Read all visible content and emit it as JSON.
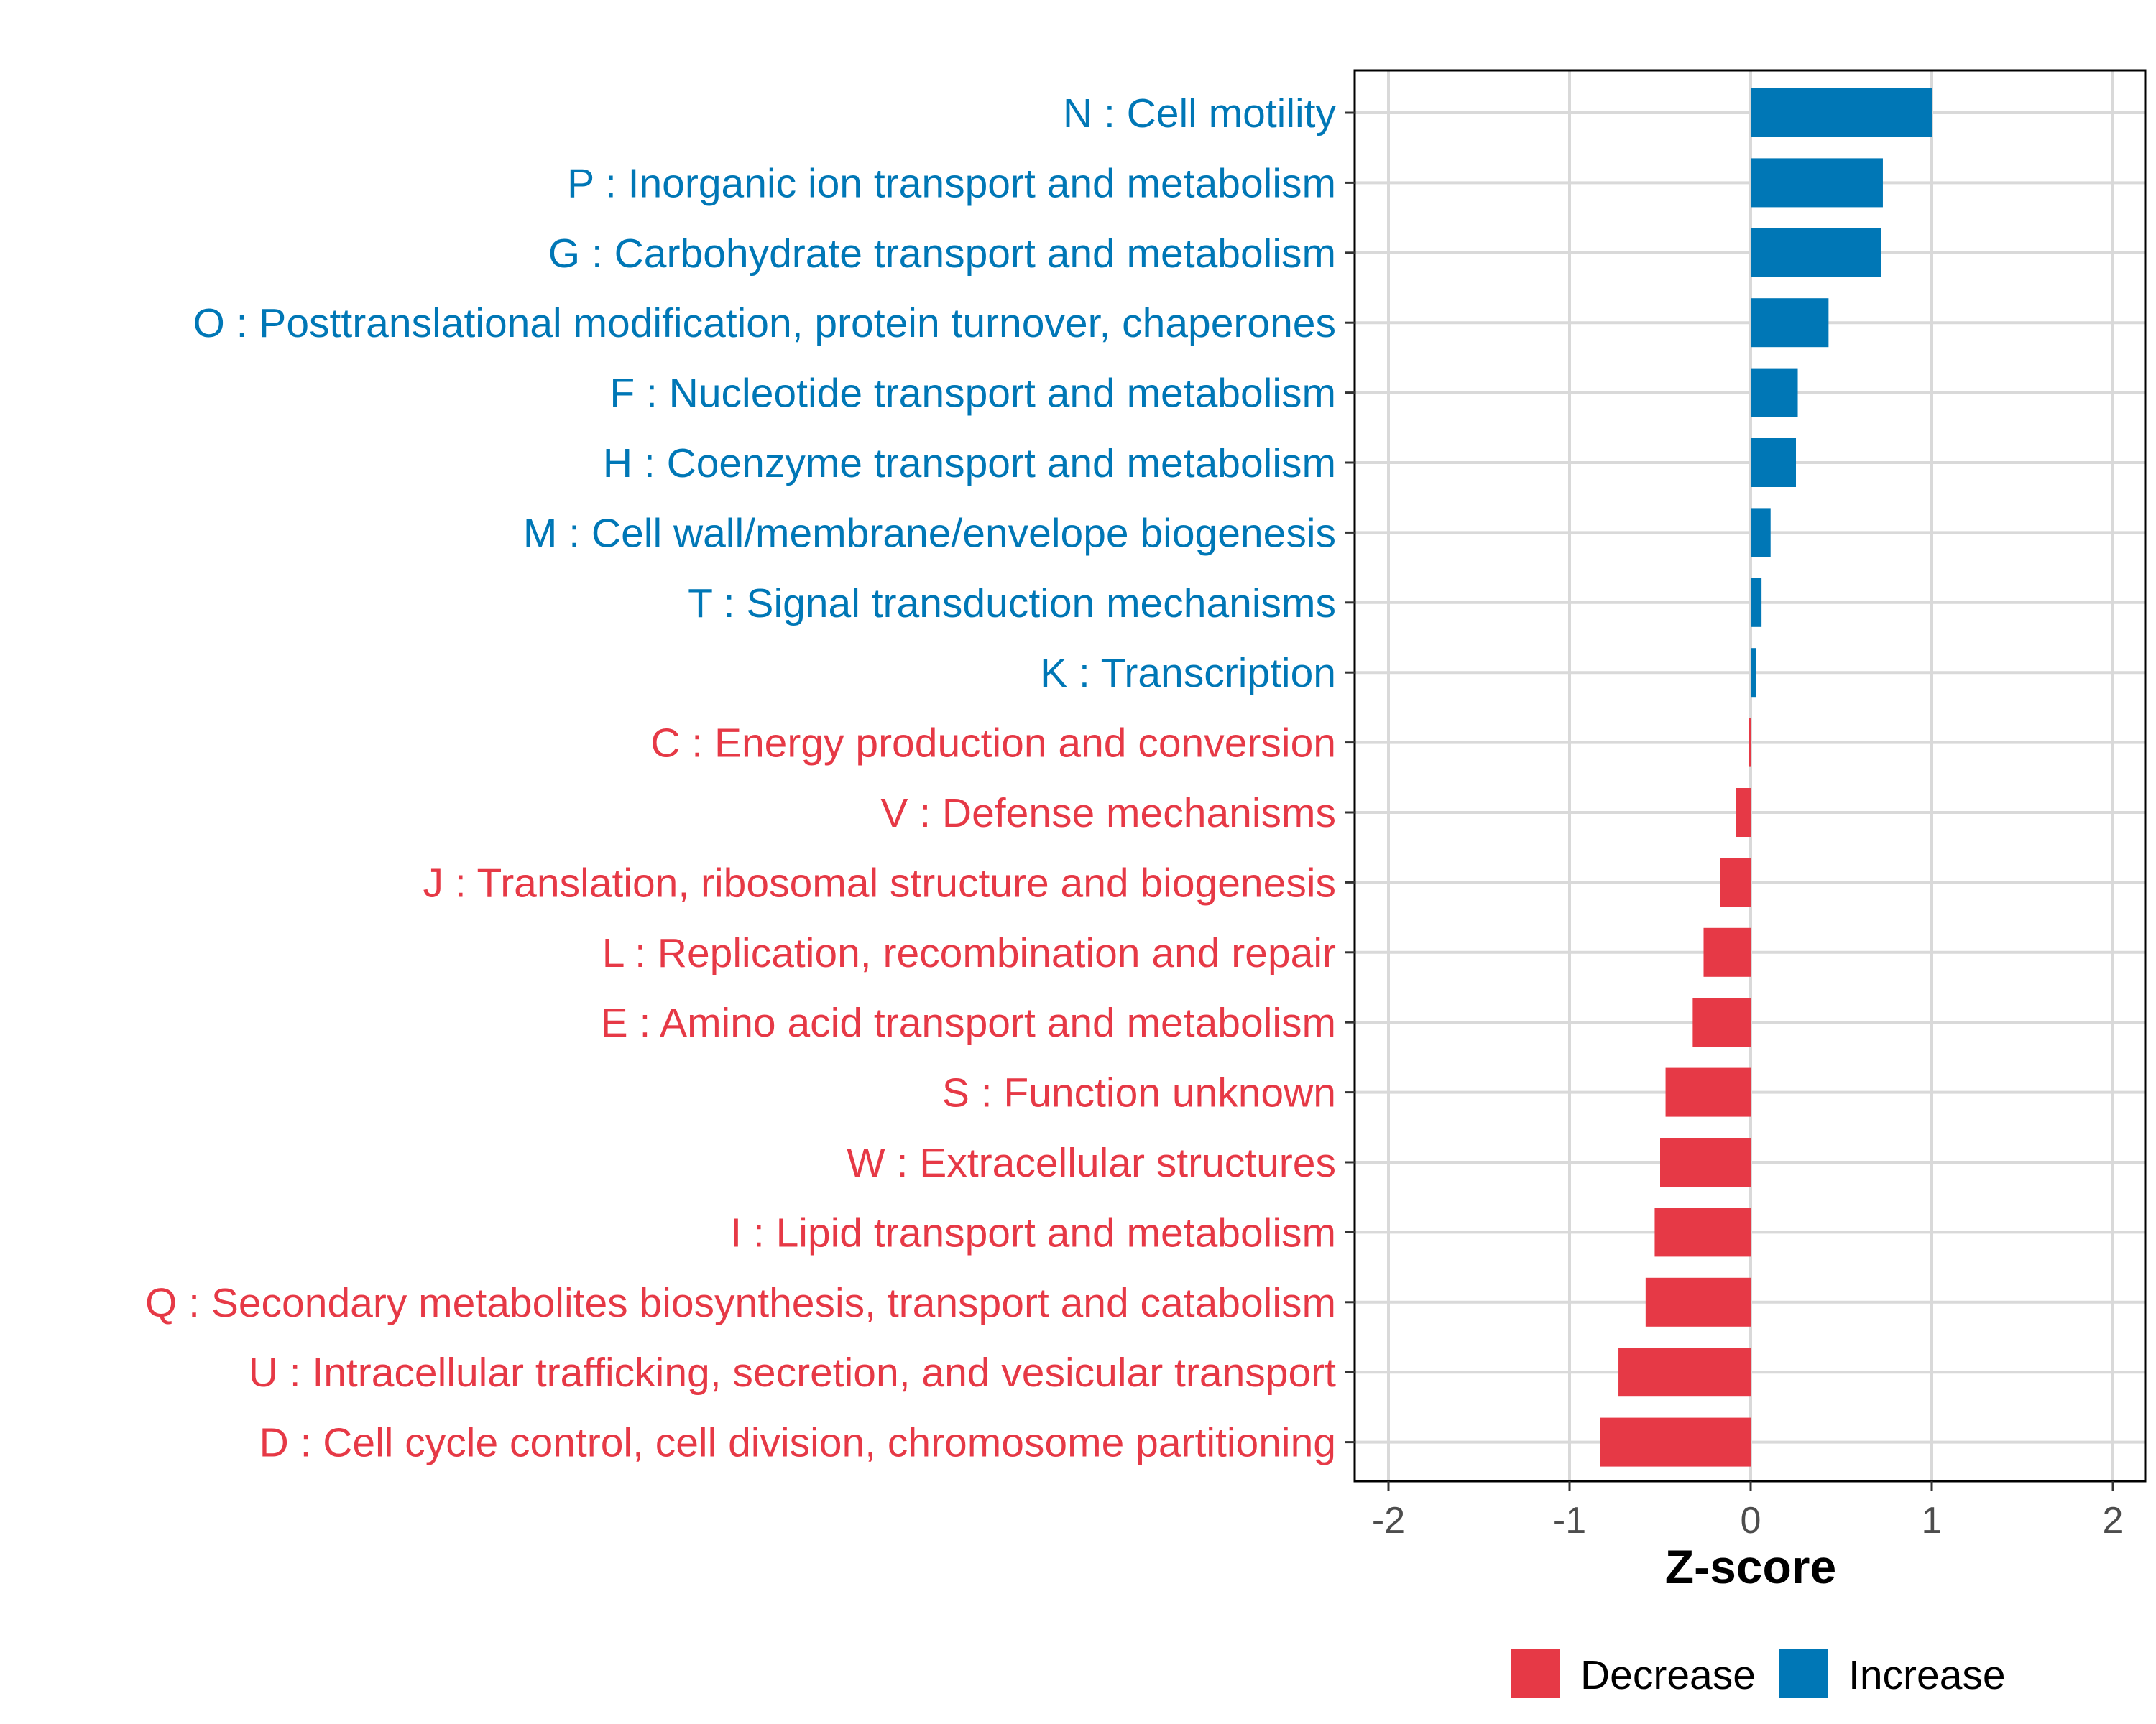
{
  "chart_data": {
    "type": "bar",
    "orientation": "horizontal",
    "title": "",
    "xlabel": "Z-score",
    "ylabel": "",
    "xlim": [
      -2.2,
      2.2
    ],
    "xticks": [
      -2,
      -1,
      0,
      1,
      2
    ],
    "xtick_labels": [
      "-2",
      "-1",
      "0",
      "1",
      "2"
    ],
    "grid": true,
    "legend_position": "bottom",
    "categories": [
      "N : Cell motility",
      "P : Inorganic ion transport and metabolism",
      "G : Carbohydrate transport and metabolism",
      "O : Posttranslational modification, protein turnover, chaperones",
      "F : Nucleotide transport and metabolism",
      "H : Coenzyme transport and metabolism",
      "M : Cell wall/membrane/envelope biogenesis",
      "T : Signal transduction mechanisms",
      "K : Transcription",
      "C : Energy production and conversion",
      "V : Defense mechanisms",
      "J : Translation, ribosomal structure and biogenesis",
      "L : Replication, recombination and repair",
      "E : Amino acid transport and metabolism",
      "S : Function unknown",
      "W : Extracellular structures",
      "I : Lipid transport and metabolism",
      "Q : Secondary metabolites biosynthesis, transport and catabolism",
      "U : Intracellular trafficking, secretion, and vesicular transport",
      "D : Cell cycle control, cell division, chromosome partitioning"
    ],
    "values": [
      1.0,
      0.73,
      0.72,
      0.43,
      0.26,
      0.25,
      0.11,
      0.06,
      0.03,
      -0.01,
      -0.08,
      -0.17,
      -0.26,
      -0.32,
      -0.47,
      -0.5,
      -0.53,
      -0.58,
      -0.73,
      -0.83
    ],
    "groups": [
      "Increase",
      "Increase",
      "Increase",
      "Increase",
      "Increase",
      "Increase",
      "Increase",
      "Increase",
      "Increase",
      "Decrease",
      "Decrease",
      "Decrease",
      "Decrease",
      "Decrease",
      "Decrease",
      "Decrease",
      "Decrease",
      "Decrease",
      "Decrease",
      "Decrease"
    ],
    "legend": [
      {
        "name": "Decrease",
        "color": "#E63946"
      },
      {
        "name": "Increase",
        "color": "#0077B6"
      }
    ]
  }
}
